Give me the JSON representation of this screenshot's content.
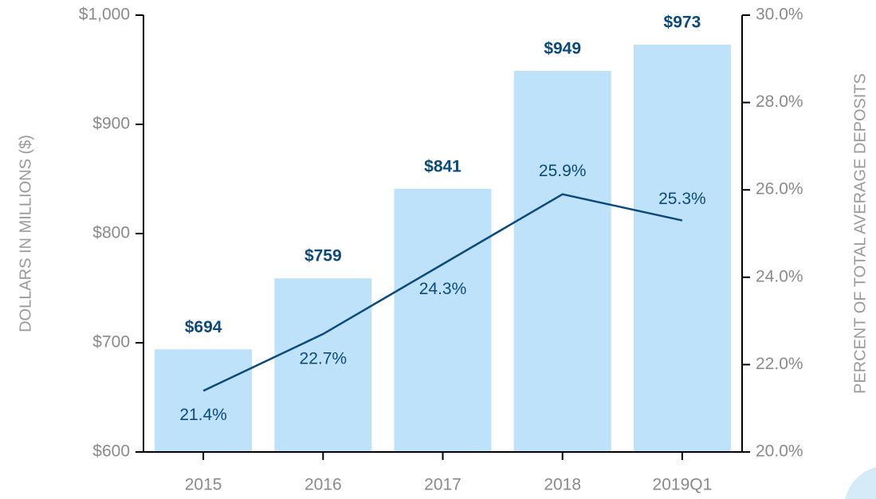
{
  "chart_data": {
    "type": "bar-line",
    "y_label": "DOLLARS IN MILLIONS ($)",
    "y2_label": "PERCENT OF TOTAL AVERAGE DEPOSITS",
    "categories": [
      "2015",
      "2016",
      "2017",
      "2018",
      "2019Q1"
    ],
    "series": [
      {
        "name": "Dollars in millions",
        "type": "bar",
        "color": "#bfe2fb",
        "values": [
          694,
          759,
          841,
          949,
          973
        ],
        "value_labels": [
          "$694",
          "$759",
          "$841",
          "$949",
          "$973"
        ]
      },
      {
        "name": "Percent of total average deposits",
        "type": "line",
        "axis": "y2",
        "color": "#0b4a7a",
        "values": [
          21.4,
          22.7,
          24.3,
          25.9,
          25.3
        ],
        "value_labels": [
          "21.4%",
          "22.7%",
          "24.3%",
          "25.9%",
          "25.3%"
        ]
      }
    ],
    "ylim": [
      600,
      1000
    ],
    "yticks": [
      {
        "value": 600,
        "label": "$600"
      },
      {
        "value": 700,
        "label": "$700"
      },
      {
        "value": 800,
        "label": "$800"
      },
      {
        "value": 900,
        "label": "$900"
      },
      {
        "value": 1000,
        "label": "$1,000"
      }
    ],
    "y2lim": [
      20,
      30
    ],
    "y2ticks": [
      {
        "value": 20,
        "label": "20.0%"
      },
      {
        "value": 22,
        "label": "22.0%"
      },
      {
        "value": 24,
        "label": "24.0%"
      },
      {
        "value": 26,
        "label": "26.0%"
      },
      {
        "value": 28,
        "label": "28.0%"
      },
      {
        "value": 30,
        "label": "30.0%"
      }
    ]
  }
}
